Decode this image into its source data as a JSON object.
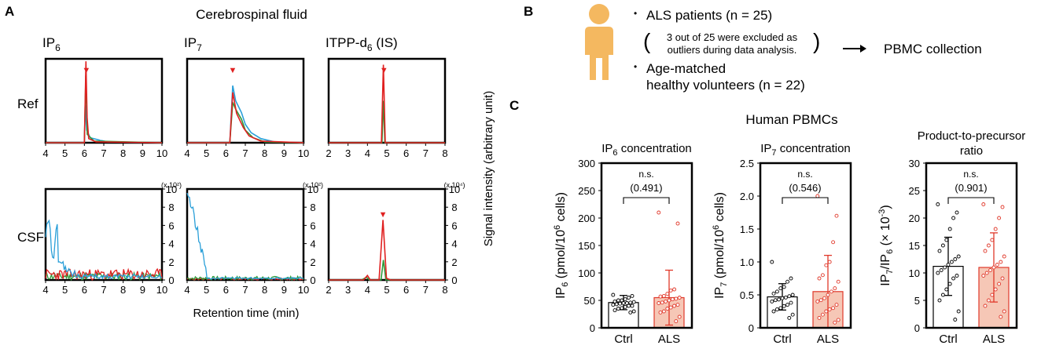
{
  "colors": {
    "blue": "#2a9fd8",
    "green": "#2e9a3a",
    "red": "#e02020",
    "als_fill": "#f6c7b6",
    "als_err": "#e0382a",
    "person": "#f4b860"
  },
  "panel_a": {
    "letter": "A",
    "title": "Cerebrospinal fluid",
    "row_labels": [
      "Ref",
      "CSF"
    ],
    "x_axis_label": "Retention time (min)",
    "y_axis_label": "Signal intensity (arbitrary unit)",
    "cols": [
      {
        "title": "IP",
        "sub": "6",
        "suffix": "",
        "xticks": [
          "4",
          "5",
          "6",
          "7",
          "8",
          "9",
          "10"
        ],
        "xlim": [
          4,
          10
        ],
        "ref_peak": 6.1,
        "peak_marker": "▼",
        "csf_scale": "(x 10²)",
        "csf_yticks": [
          "0",
          "2",
          "4",
          "6",
          "8",
          "10"
        ]
      },
      {
        "title": "IP",
        "sub": "7",
        "suffix": "",
        "xticks": [
          "4",
          "5",
          "6",
          "7",
          "8",
          "9",
          "10"
        ],
        "xlim": [
          4,
          10
        ],
        "ref_peak": 6.35,
        "peak_marker": "▼",
        "csf_scale": "(x 10²)",
        "csf_yticks": [
          "0",
          "2",
          "4",
          "6",
          "8",
          "10"
        ]
      },
      {
        "title": "ITPP-d",
        "sub": "6",
        "suffix": " (IS)",
        "xticks": [
          "2",
          "3",
          "4",
          "5",
          "6",
          "7",
          "8"
        ],
        "xlim": [
          2,
          8
        ],
        "ref_peak": 4.85,
        "peak_marker": "▼",
        "csf_scale": "(x 10⁴)",
        "csf_yticks": [
          "0",
          "2",
          "4",
          "6",
          "8",
          "10"
        ]
      }
    ]
  },
  "panel_b": {
    "letter": "B",
    "bullet1": "ALS patients (n = 25)",
    "note_line1": "3 out of 25 were excluded as",
    "note_line2": "outliers during data analysis.",
    "bullet2_line1": "Age-matched",
    "bullet2_line2": "healthy volunteers (n = 22)",
    "arrow_label": "PBMC collection",
    "bullet_char": "•",
    "paren_open": "(",
    "paren_close": ")"
  },
  "panel_c": {
    "letter": "C",
    "title": "Human PBMCs",
    "chart_data": [
      {
        "type": "bar",
        "title": "IP6 concentration",
        "categories": [
          "Ctrl",
          "ALS"
        ],
        "ylabel": "IP6 (pmol/10^6 cells)",
        "ylim": [
          0,
          300
        ],
        "yticks": [
          0,
          50,
          100,
          150,
          200,
          250,
          300
        ],
        "means": [
          46,
          55
        ],
        "sd": [
          13,
          50
        ],
        "sig_label": "n.s.",
        "p_value": "(0.491)",
        "ctrl_points": [
          60,
          58,
          55,
          52,
          50,
          50,
          48,
          47,
          46,
          45,
          45,
          44,
          43,
          42,
          40,
          40,
          38,
          36,
          35,
          32,
          30,
          28
        ],
        "als_points": [
          210,
          190,
          70,
          68,
          62,
          58,
          57,
          55,
          53,
          52,
          50,
          48,
          46,
          45,
          42,
          40,
          37,
          35,
          30,
          28,
          20,
          12
        ]
      },
      {
        "type": "bar",
        "title": "IP7 concentration",
        "categories": [
          "Ctrl",
          "ALS"
        ],
        "ylabel": "IP7 (pmol/10^6 cells)",
        "ylim": [
          0,
          2.5
        ],
        "yticks": [
          0,
          0.5,
          1.0,
          1.5,
          2.0,
          2.5
        ],
        "means": [
          0.47,
          0.55
        ],
        "sd": [
          0.2,
          0.55
        ],
        "sig_label": "n.s.",
        "p_value": "(0.546)",
        "ctrl_points": [
          1.0,
          0.75,
          0.7,
          0.62,
          0.6,
          0.55,
          0.52,
          0.5,
          0.48,
          0.46,
          0.45,
          0.43,
          0.42,
          0.4,
          0.38,
          0.35,
          0.33,
          0.3,
          0.28,
          0.25,
          0.2,
          0.15
        ],
        "als_points": [
          2.0,
          1.7,
          1.3,
          1.0,
          0.95,
          0.8,
          0.75,
          0.7,
          0.6,
          0.55,
          0.5,
          0.45,
          0.42,
          0.4,
          0.35,
          0.3,
          0.28,
          0.25,
          0.2,
          0.15,
          0.12,
          0.08
        ]
      },
      {
        "type": "bar",
        "title": "Product-to-precursor ratio",
        "categories": [
          "Ctrl",
          "ALS"
        ],
        "ylabel": "IP7/IP6 (× 10^-3)",
        "ylim": [
          0,
          30
        ],
        "yticks": [
          0,
          5,
          10,
          15,
          20,
          25,
          30
        ],
        "means": [
          11.2,
          11.0
        ],
        "sd": [
          5.3,
          6.3
        ],
        "sig_label": "n.s.",
        "p_value": "(0.901)",
        "ctrl_points": [
          22.5,
          21,
          20,
          18,
          16,
          15,
          14,
          13,
          12.5,
          12,
          11.5,
          11,
          10.5,
          10,
          9.5,
          9,
          8,
          7,
          6,
          5,
          3,
          1.5
        ],
        "als_points": [
          22.5,
          22,
          20,
          18,
          16,
          15,
          14,
          13,
          12,
          11.5,
          11,
          10.5,
          10,
          9.5,
          9,
          8,
          7,
          6,
          5,
          4,
          3,
          2
        ]
      }
    ],
    "y_label_parts": [
      {
        "a": "IP",
        "asub": "6",
        "rest": " (pmol/10",
        "sup": "6",
        "end": " cells)"
      },
      {
        "a": "IP",
        "asub": "7",
        "rest": " (pmol/10",
        "sup": "6",
        "end": " cells)"
      },
      {
        "a": "IP",
        "asub": "7",
        "rest": "/IP",
        "rsub": "6",
        "end2": " (× 10",
        "sup": "-3",
        "end": ")"
      }
    ],
    "title_parts": [
      {
        "a": "IP",
        "sub": "6",
        "rest": " concentration"
      },
      {
        "a": "IP",
        "sub": "7",
        "rest": " concentration"
      },
      {
        "line1": "Product-to-precursor",
        "line2": "ratio"
      }
    ]
  }
}
